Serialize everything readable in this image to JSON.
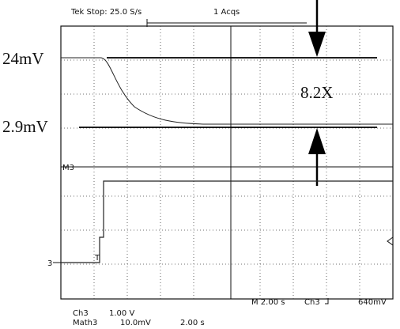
{
  "header": {
    "status": "Tek Stop: 25.0 S/s",
    "acquisitions": "1 Acqs"
  },
  "annotations": {
    "high_level": "24mV",
    "low_level": "2.9mV",
    "ratio": "8.2X"
  },
  "markers": {
    "math": "M3",
    "channel": "3",
    "trigger": "T"
  },
  "readout": {
    "timebase": "M 2.00 s",
    "trigger_source": "Ch3",
    "trigger_level": "640mV",
    "ch3_label": "Ch3",
    "ch3_scale": "1.00 V",
    "math_label": "Math3",
    "math_scale": "10.0mV",
    "math_time": "2.00 s"
  }
}
